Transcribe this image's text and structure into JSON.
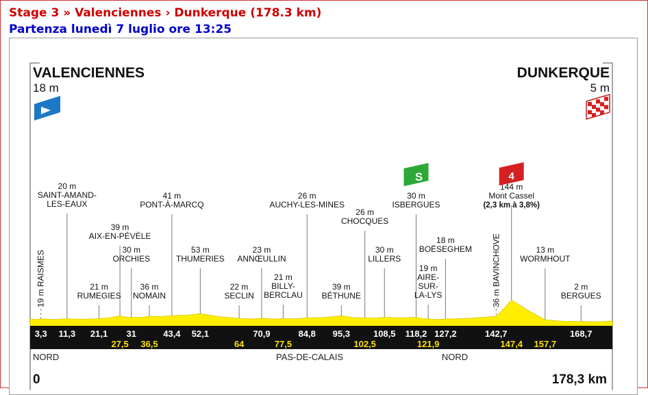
{
  "header": {
    "title": "Stage 3 » Valenciennes › Dunkerque (178.3 km)",
    "subtitle": "Partenza lunedì 7 luglio ore 13:25"
  },
  "colors": {
    "title": "#cc0000",
    "subtitle": "#0000cc",
    "profile_fill": "#ffee00",
    "band": "#111111",
    "km_upper": "#ffffff",
    "km_lower": "#ffe000",
    "start_flag": "#1e78c8",
    "sprint_badge": "#2ea836",
    "climb_badge": "#d42020"
  },
  "icons": {
    "start": "start-flag-icon",
    "finish": "checkered-flag-icon",
    "sprint": "sprint-badge-icon",
    "climb": "climb-category-icon"
  },
  "start": {
    "name": "VALENCIENNES",
    "alt": "18 m"
  },
  "finish": {
    "name": "DUNKERQUE",
    "alt": "5 m"
  },
  "sprint_badge": "S",
  "climb_badge": "4",
  "regions": [
    "NORD",
    "PAS-DE-CALAIS",
    "NORD"
  ],
  "axis": {
    "start": "0",
    "end": "178,3 km"
  },
  "chart_data": {
    "type": "area",
    "title": "",
    "xlabel": "",
    "ylabel": "",
    "xlim": [
      0,
      178.3
    ],
    "ylim": [
      0,
      150
    ],
    "x_unit": "km",
    "y_unit": "m",
    "profile": [
      {
        "km": 0,
        "alt": 18
      },
      {
        "km": 3.3,
        "alt": 19
      },
      {
        "km": 11.3,
        "alt": 20
      },
      {
        "km": 21.1,
        "alt": 21
      },
      {
        "km": 27.5,
        "alt": 39
      },
      {
        "km": 31,
        "alt": 30
      },
      {
        "km": 36.5,
        "alt": 36
      },
      {
        "km": 43.4,
        "alt": 41
      },
      {
        "km": 52.1,
        "alt": 53
      },
      {
        "km": 64,
        "alt": 22
      },
      {
        "km": 70.9,
        "alt": 23
      },
      {
        "km": 77.5,
        "alt": 21
      },
      {
        "km": 84.8,
        "alt": 26
      },
      {
        "km": 95.3,
        "alt": 39
      },
      {
        "km": 102.5,
        "alt": 26
      },
      {
        "km": 108.5,
        "alt": 30
      },
      {
        "km": 118.2,
        "alt": 30
      },
      {
        "km": 121.9,
        "alt": 19
      },
      {
        "km": 127.2,
        "alt": 18
      },
      {
        "km": 142.7,
        "alt": 36
      },
      {
        "km": 147.4,
        "alt": 144
      },
      {
        "km": 157.7,
        "alt": 13
      },
      {
        "km": 168.7,
        "alt": 2
      },
      {
        "km": 178.3,
        "alt": 5
      }
    ],
    "points": [
      {
        "name": "RAISMES",
        "alt_label": "19 m",
        "km": 3.3,
        "km_label": "3,3",
        "row": "upper",
        "vertical": true
      },
      {
        "name": "SAINT-AMAND-|LES-EAUX",
        "alt_label": "20 m",
        "km": 11.3,
        "km_label": "11,3",
        "row": "upper"
      },
      {
        "name": "RUMEGIES",
        "alt_label": "21 m",
        "km": 21.1,
        "km_label": "21,1",
        "row": "upper"
      },
      {
        "name": "AIX-EN-PÉVÈLE",
        "alt_label": "39 m",
        "km": 27.5,
        "km_label": "27,5",
        "row": "lower"
      },
      {
        "name": "ORCHIES",
        "alt_label": "30 m",
        "km": 31,
        "km_label": "31",
        "row": "upper"
      },
      {
        "name": "NOMAIN",
        "alt_label": "36 m",
        "km": 36.5,
        "km_label": "36,5",
        "row": "lower"
      },
      {
        "name": "PONT-À-MARCQ",
        "alt_label": "41 m",
        "km": 43.4,
        "km_label": "43,4",
        "row": "upper"
      },
      {
        "name": "THUMERIES",
        "alt_label": "53 m",
        "km": 52.1,
        "km_label": "52,1",
        "row": "upper"
      },
      {
        "name": "SECLIN",
        "alt_label": "22 m",
        "km": 64,
        "km_label": "64",
        "row": "lower"
      },
      {
        "name": "ANNŒULLIN",
        "alt_label": "23 m",
        "km": 70.9,
        "km_label": "70,9",
        "row": "upper"
      },
      {
        "name": "BILLY-|BERCLAU",
        "alt_label": "21 m",
        "km": 77.5,
        "km_label": "77,5",
        "row": "lower"
      },
      {
        "name": "AUCHY-LES-MINES",
        "alt_label": "26 m",
        "km": 84.8,
        "km_label": "84,8",
        "row": "upper"
      },
      {
        "name": "BÉTHUNE",
        "alt_label": "39 m",
        "km": 95.3,
        "km_label": "95,3",
        "row": "upper"
      },
      {
        "name": "CHOCQUES",
        "alt_label": "26 m",
        "km": 102.5,
        "km_label": "102,5",
        "row": "lower"
      },
      {
        "name": "LILLERS",
        "alt_label": "30 m",
        "km": 108.5,
        "km_label": "108,5",
        "row": "upper"
      },
      {
        "name": "ISBERGUES",
        "alt_label": "30 m",
        "km": 118.2,
        "km_label": "118,2",
        "row": "upper",
        "sprint": true
      },
      {
        "name": "AIRE-|SUR-|LA-LYS",
        "alt_label": "19 m",
        "km": 121.9,
        "km_label": "121,9",
        "row": "lower"
      },
      {
        "name": "BOËSEGHEM",
        "alt_label": "18 m",
        "km": 127.2,
        "km_label": "127,2",
        "row": "upper"
      },
      {
        "name": "BAVINCHOVE",
        "alt_label": "36 m",
        "km": 142.7,
        "km_label": "142,7",
        "row": "upper",
        "vertical": true
      },
      {
        "name": "Mont Cassel",
        "alt_label": "144 m",
        "km": 147.4,
        "km_label": "147,4",
        "row": "lower",
        "climb": true,
        "climb_note": "(2,3 km à 3,8%)"
      },
      {
        "name": "WORMHOUT",
        "alt_label": "13 m",
        "km": 157.7,
        "km_label": "157,7",
        "row": "lower"
      },
      {
        "name": "BERGUES",
        "alt_label": "2 m",
        "km": 168.7,
        "km_label": "168,7",
        "row": "upper"
      }
    ]
  }
}
